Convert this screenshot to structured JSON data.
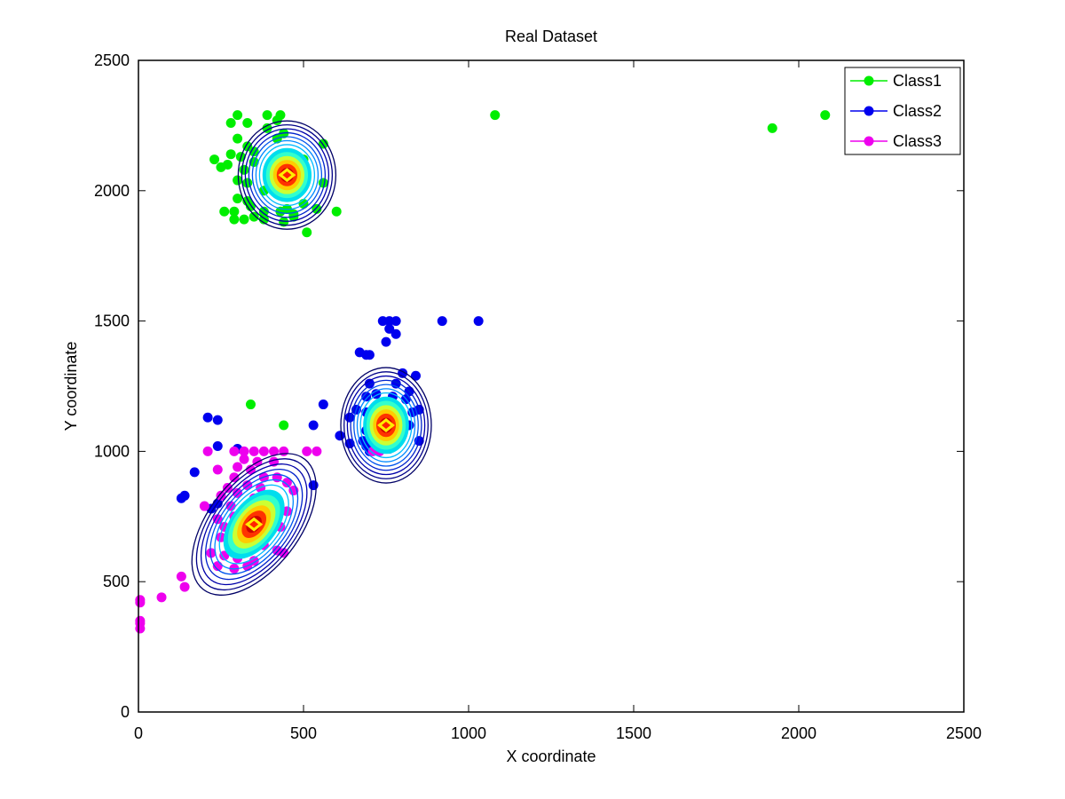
{
  "chart_data": {
    "type": "scatter",
    "title": "Real Dataset",
    "xlabel": "X coordinate",
    "ylabel": "Y coordinate",
    "xlim": [
      0,
      2500
    ],
    "ylim": [
      0,
      2500
    ],
    "xticks": [
      0,
      500,
      1000,
      1500,
      2000,
      2500
    ],
    "yticks": [
      0,
      500,
      1000,
      1500,
      2000,
      2500
    ],
    "grid": false,
    "legend_position": "top-right",
    "series": [
      {
        "name": "Class1",
        "color": "#00ee00",
        "points": [
          [
            300,
            2290
          ],
          [
            390,
            2290
          ],
          [
            430,
            2290
          ],
          [
            420,
            2270
          ],
          [
            330,
            2260
          ],
          [
            280,
            2260
          ],
          [
            390,
            2240
          ],
          [
            440,
            2220
          ],
          [
            420,
            2200
          ],
          [
            300,
            2200
          ],
          [
            560,
            2180
          ],
          [
            330,
            2170
          ],
          [
            280,
            2140
          ],
          [
            310,
            2130
          ],
          [
            230,
            2120
          ],
          [
            350,
            2110
          ],
          [
            270,
            2100
          ],
          [
            250,
            2090
          ],
          [
            320,
            2080
          ],
          [
            500,
            2120
          ],
          [
            480,
            2060
          ],
          [
            300,
            2040
          ],
          [
            330,
            2030
          ],
          [
            560,
            2030
          ],
          [
            300,
            1970
          ],
          [
            330,
            1960
          ],
          [
            500,
            1950
          ],
          [
            340,
            1940
          ],
          [
            260,
            1920
          ],
          [
            290,
            1920
          ],
          [
            380,
            1920
          ],
          [
            430,
            1920
          ],
          [
            450,
            1930
          ],
          [
            600,
            1920
          ],
          [
            470,
            1910
          ],
          [
            350,
            1900
          ],
          [
            320,
            1890
          ],
          [
            290,
            1890
          ],
          [
            380,
            1890
          ],
          [
            440,
            1880
          ],
          [
            470,
            1900
          ],
          [
            540,
            1930
          ],
          [
            510,
            1840
          ],
          [
            470,
            2050
          ],
          [
            410,
            2010
          ],
          [
            380,
            2000
          ],
          [
            350,
            2150
          ],
          [
            1080,
            2290
          ],
          [
            1920,
            2240
          ],
          [
            2080,
            2290
          ],
          [
            340,
            1180
          ],
          [
            440,
            1100
          ]
        ]
      },
      {
        "name": "Class2",
        "color": "#0000ee",
        "points": [
          [
            740,
            1500
          ],
          [
            760,
            1500
          ],
          [
            780,
            1500
          ],
          [
            920,
            1500
          ],
          [
            1030,
            1500
          ],
          [
            760,
            1470
          ],
          [
            780,
            1450
          ],
          [
            750,
            1420
          ],
          [
            670,
            1380
          ],
          [
            690,
            1370
          ],
          [
            700,
            1370
          ],
          [
            800,
            1300
          ],
          [
            840,
            1290
          ],
          [
            700,
            1260
          ],
          [
            780,
            1260
          ],
          [
            820,
            1230
          ],
          [
            690,
            1210
          ],
          [
            720,
            1220
          ],
          [
            770,
            1210
          ],
          [
            810,
            1200
          ],
          [
            560,
            1180
          ],
          [
            660,
            1160
          ],
          [
            690,
            1150
          ],
          [
            830,
            1150
          ],
          [
            850,
            1160
          ],
          [
            530,
            1100
          ],
          [
            640,
            1130
          ],
          [
            700,
            1120
          ],
          [
            760,
            1140
          ],
          [
            800,
            1130
          ],
          [
            820,
            1100
          ],
          [
            690,
            1080
          ],
          [
            710,
            1070
          ],
          [
            740,
            1060
          ],
          [
            780,
            1080
          ],
          [
            610,
            1060
          ],
          [
            640,
            1030
          ],
          [
            680,
            1040
          ],
          [
            720,
            1030
          ],
          [
            760,
            1040
          ],
          [
            850,
            1040
          ],
          [
            690,
            1020
          ],
          [
            700,
            1000
          ],
          [
            730,
            1000
          ],
          [
            760,
            1010
          ],
          [
            210,
            1130
          ],
          [
            240,
            1120
          ],
          [
            240,
            1020
          ],
          [
            300,
            1010
          ],
          [
            170,
            920
          ],
          [
            140,
            830
          ],
          [
            130,
            820
          ],
          [
            530,
            870
          ],
          [
            240,
            800
          ],
          [
            220,
            780
          ]
        ]
      },
      {
        "name": "Class3",
        "color": "#ee00ee",
        "points": [
          [
            290,
            1000
          ],
          [
            320,
            1000
          ],
          [
            350,
            1000
          ],
          [
            380,
            1000
          ],
          [
            410,
            1000
          ],
          [
            440,
            1000
          ],
          [
            510,
            1000
          ],
          [
            540,
            1000
          ],
          [
            210,
            1000
          ],
          [
            320,
            970
          ],
          [
            360,
            960
          ],
          [
            410,
            960
          ],
          [
            300,
            940
          ],
          [
            340,
            930
          ],
          [
            240,
            930
          ],
          [
            290,
            900
          ],
          [
            380,
            900
          ],
          [
            420,
            900
          ],
          [
            450,
            880
          ],
          [
            330,
            870
          ],
          [
            370,
            860
          ],
          [
            270,
            860
          ],
          [
            470,
            850
          ],
          [
            300,
            840
          ],
          [
            250,
            830
          ],
          [
            350,
            820
          ],
          [
            420,
            800
          ],
          [
            200,
            790
          ],
          [
            280,
            790
          ],
          [
            330,
            780
          ],
          [
            390,
            780
          ],
          [
            450,
            770
          ],
          [
            290,
            750
          ],
          [
            240,
            740
          ],
          [
            340,
            740
          ],
          [
            400,
            730
          ],
          [
            260,
            710
          ],
          [
            300,
            700
          ],
          [
            350,
            700
          ],
          [
            430,
            710
          ],
          [
            250,
            670
          ],
          [
            280,
            650
          ],
          [
            330,
            640
          ],
          [
            380,
            640
          ],
          [
            420,
            620
          ],
          [
            440,
            610
          ],
          [
            220,
            610
          ],
          [
            260,
            600
          ],
          [
            300,
            590
          ],
          [
            350,
            580
          ],
          [
            240,
            560
          ],
          [
            290,
            550
          ],
          [
            330,
            560
          ],
          [
            130,
            520
          ],
          [
            140,
            480
          ],
          [
            70,
            440
          ],
          [
            5,
            420
          ],
          [
            5,
            430
          ],
          [
            5,
            350
          ],
          [
            5,
            320
          ],
          [
            5,
            340
          ],
          [
            730,
            1000
          ],
          [
            710,
            1000
          ]
        ]
      }
    ],
    "contour_centers": [
      {
        "cx": 450,
        "cy": 2060,
        "color": "#0000ee"
      },
      {
        "cx": 750,
        "cy": 1100,
        "color": "#0000ee"
      },
      {
        "cx": 350,
        "cy": 720,
        "color": "#ee00ee"
      }
    ]
  }
}
